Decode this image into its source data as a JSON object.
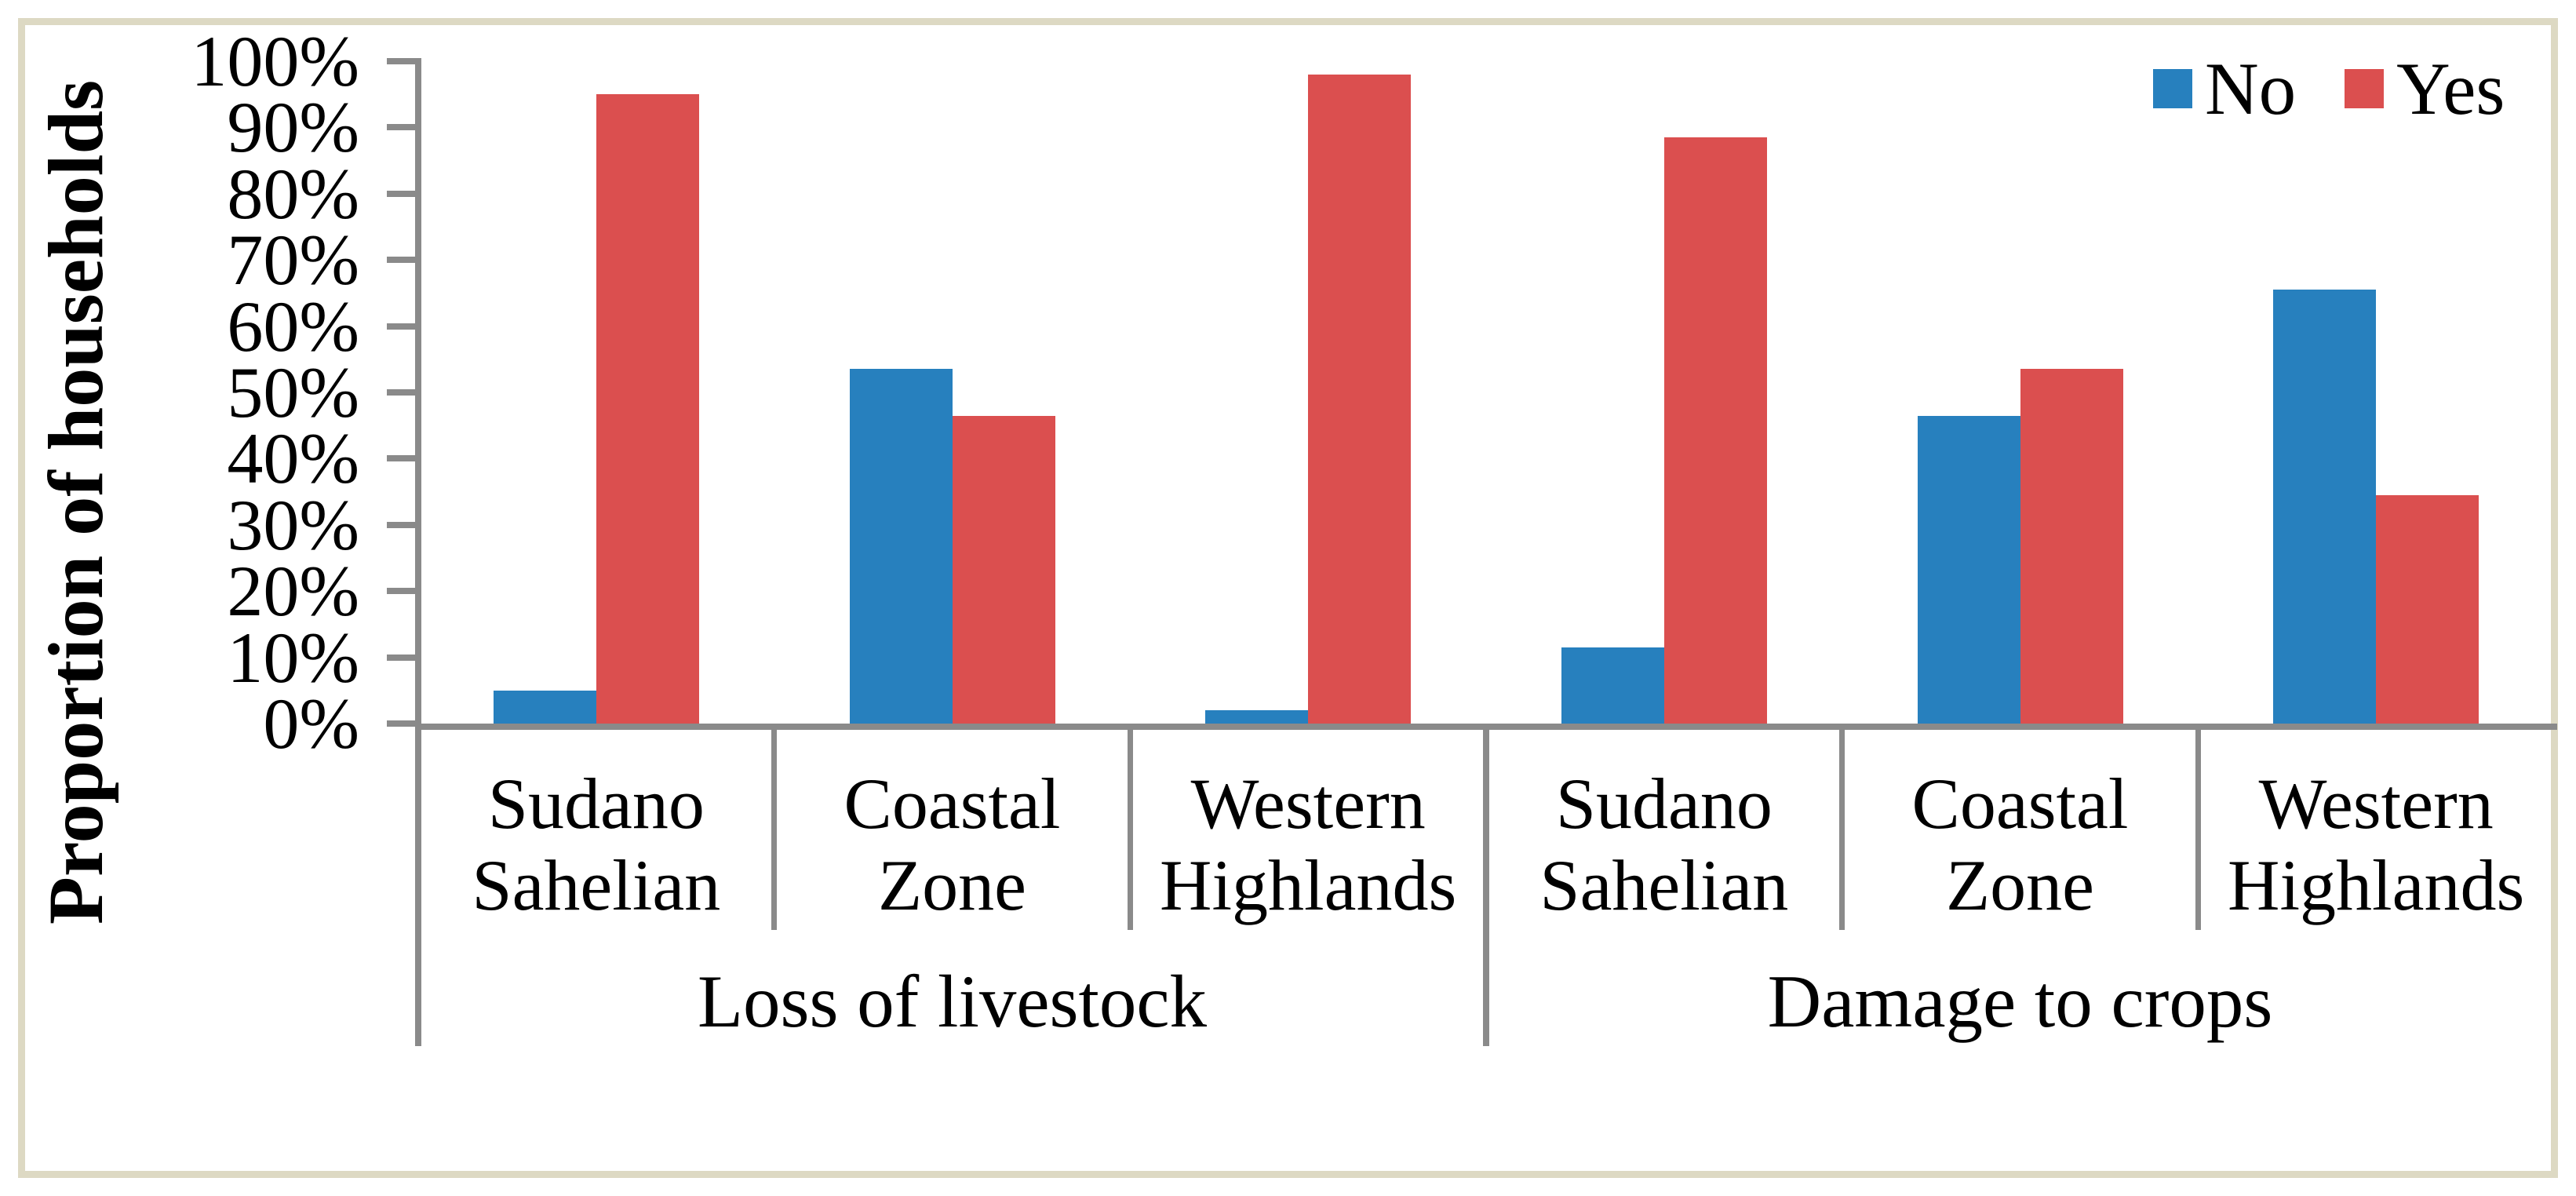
{
  "figure": {
    "border_color": "#DDD9C3",
    "background": "#FFFFFF"
  },
  "chart_data": {
    "type": "bar",
    "title": "",
    "ylabel": "Proportion of households",
    "xlabel": "",
    "ylim": [
      0,
      100
    ],
    "ytick_step": 10,
    "ytick_labels": [
      "0%",
      "10%",
      "20%",
      "30%",
      "40%",
      "50%",
      "60%",
      "70%",
      "80%",
      "90%",
      "100%"
    ],
    "grid": false,
    "legend_position": "top-right",
    "axis_color": "#8A8A8A",
    "group_labels": [
      "Loss of livestock",
      "Damage to crops"
    ],
    "categories": [
      "Sudano\nSahelian",
      "Coastal\nZone",
      "Western\nHighlands",
      "Sudano\nSahelian",
      "Coastal\nZone",
      "Western\nHighlands"
    ],
    "series": [
      {
        "name": "No",
        "color": "#2780BE",
        "values": [
          5,
          53.5,
          2,
          11.5,
          46.5,
          65.5
        ]
      },
      {
        "name": "Yes",
        "color": "#DB4F4F",
        "values": [
          95,
          46.5,
          98,
          88.5,
          53.5,
          34.5
        ]
      }
    ]
  }
}
